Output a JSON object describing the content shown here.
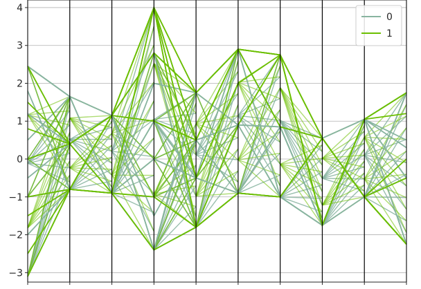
{
  "chart_data": {
    "type": "parallel_coordinates",
    "ylim": [
      -3.25,
      4.2
    ],
    "y_ticks": [
      -3,
      -2,
      -1,
      0,
      1,
      2,
      3,
      4
    ],
    "y_tick_labels": [
      "−3",
      "−2",
      "−1",
      "0",
      "1",
      "2",
      "3",
      "4"
    ],
    "num_axes": 10,
    "grid": true,
    "legend": {
      "placement": "top-right",
      "entries": [
        {
          "label": "0",
          "color": "#88b4a0"
        },
        {
          "label": "1",
          "color": "#6bbf00"
        }
      ]
    },
    "axis_levels": [
      [
        -3.1,
        -1.0,
        0.0,
        2.45
      ],
      [
        -0.8,
        0.4,
        1.65
      ],
      [
        -0.9,
        1.15
      ],
      [
        -2.4,
        -1.0,
        0.0,
        1.0,
        2.8,
        4.0
      ],
      [
        -1.8,
        -0.5,
        0.5,
        1.75
      ],
      [
        -0.9,
        0.9,
        2.9
      ],
      [
        -1.0,
        0.85,
        2.75
      ],
      [
        -1.75,
        0.55
      ],
      [
        -1.0,
        1.05
      ],
      [
        -2.25,
        -0.5,
        1.75
      ]
    ],
    "series": [
      {
        "name": "0",
        "color": "#88b4a0",
        "lines": [
          [
            2.45,
            1.65,
            1.15,
            2.8,
            1.75,
            2.9,
            0.85,
            -1.75,
            1.05,
            1.75
          ],
          [
            -3.1,
            -0.8,
            -0.9,
            -2.4,
            -1.8,
            -0.9,
            -1.0,
            0.55,
            -1.0,
            -2.25
          ],
          [
            0.0,
            0.4,
            1.15,
            1.0,
            0.5,
            0.9,
            0.85,
            -1.75,
            1.05,
            -0.5
          ],
          [
            -1.0,
            -0.8,
            -0.9,
            0.0,
            -0.5,
            -0.9,
            0.85,
            0.55,
            -1.0,
            1.75
          ],
          [
            2.45,
            1.65,
            -0.9,
            -2.4,
            1.75,
            2.9,
            -1.0,
            -1.75,
            1.05,
            -2.25
          ],
          [
            1.2,
            0.4,
            1.15,
            2.8,
            -1.8,
            0.9,
            0.85,
            0.55,
            1.05,
            0.5
          ],
          [
            -2.0,
            -0.8,
            1.15,
            -1.5,
            0.5,
            -0.9,
            -1.0,
            -1.75,
            -1.0,
            -0.5
          ],
          [
            0.5,
            1.65,
            -0.9,
            1.0,
            -0.5,
            2.9,
            0.85,
            -1.75,
            1.05,
            1.75
          ],
          [
            -0.5,
            0.4,
            -0.9,
            2.0,
            1.75,
            0.9,
            -1.0,
            0.55,
            -1.0,
            -2.25
          ],
          [
            1.8,
            -0.8,
            1.15,
            -2.4,
            -1.8,
            -0.9,
            0.85,
            -1.75,
            1.05,
            0.3
          ]
        ]
      },
      {
        "name": "1",
        "color": "#6bbf00",
        "lines": [
          [
            2.45,
            0.4,
            1.15,
            4.0,
            1.75,
            2.9,
            2.75,
            0.55,
            -1.0,
            -2.25
          ],
          [
            -3.1,
            -0.8,
            -0.9,
            4.0,
            -1.8,
            0.9,
            2.75,
            -1.75,
            1.05,
            1.75
          ],
          [
            0.0,
            0.4,
            1.15,
            1.0,
            0.5,
            2.9,
            2.75,
            0.55,
            -1.0,
            -0.5
          ],
          [
            -1.0,
            -0.8,
            -0.9,
            -1.0,
            -1.8,
            -0.9,
            -1.0,
            0.55,
            -1.0,
            -2.25
          ],
          [
            1.5,
            0.4,
            1.15,
            4.0,
            -0.5,
            2.0,
            2.75,
            -1.75,
            1.05,
            1.2
          ],
          [
            -2.5,
            -0.8,
            1.15,
            2.8,
            1.75,
            2.9,
            0.85,
            0.55,
            -1.0,
            -2.25
          ],
          [
            0.8,
            0.4,
            -0.9,
            -2.4,
            -1.8,
            -0.9,
            -1.0,
            0.55,
            -1.0,
            0.0
          ],
          [
            -1.5,
            -0.8,
            1.15,
            4.0,
            0.5,
            2.9,
            2.75,
            -1.75,
            1.05,
            1.75
          ]
        ]
      }
    ]
  }
}
